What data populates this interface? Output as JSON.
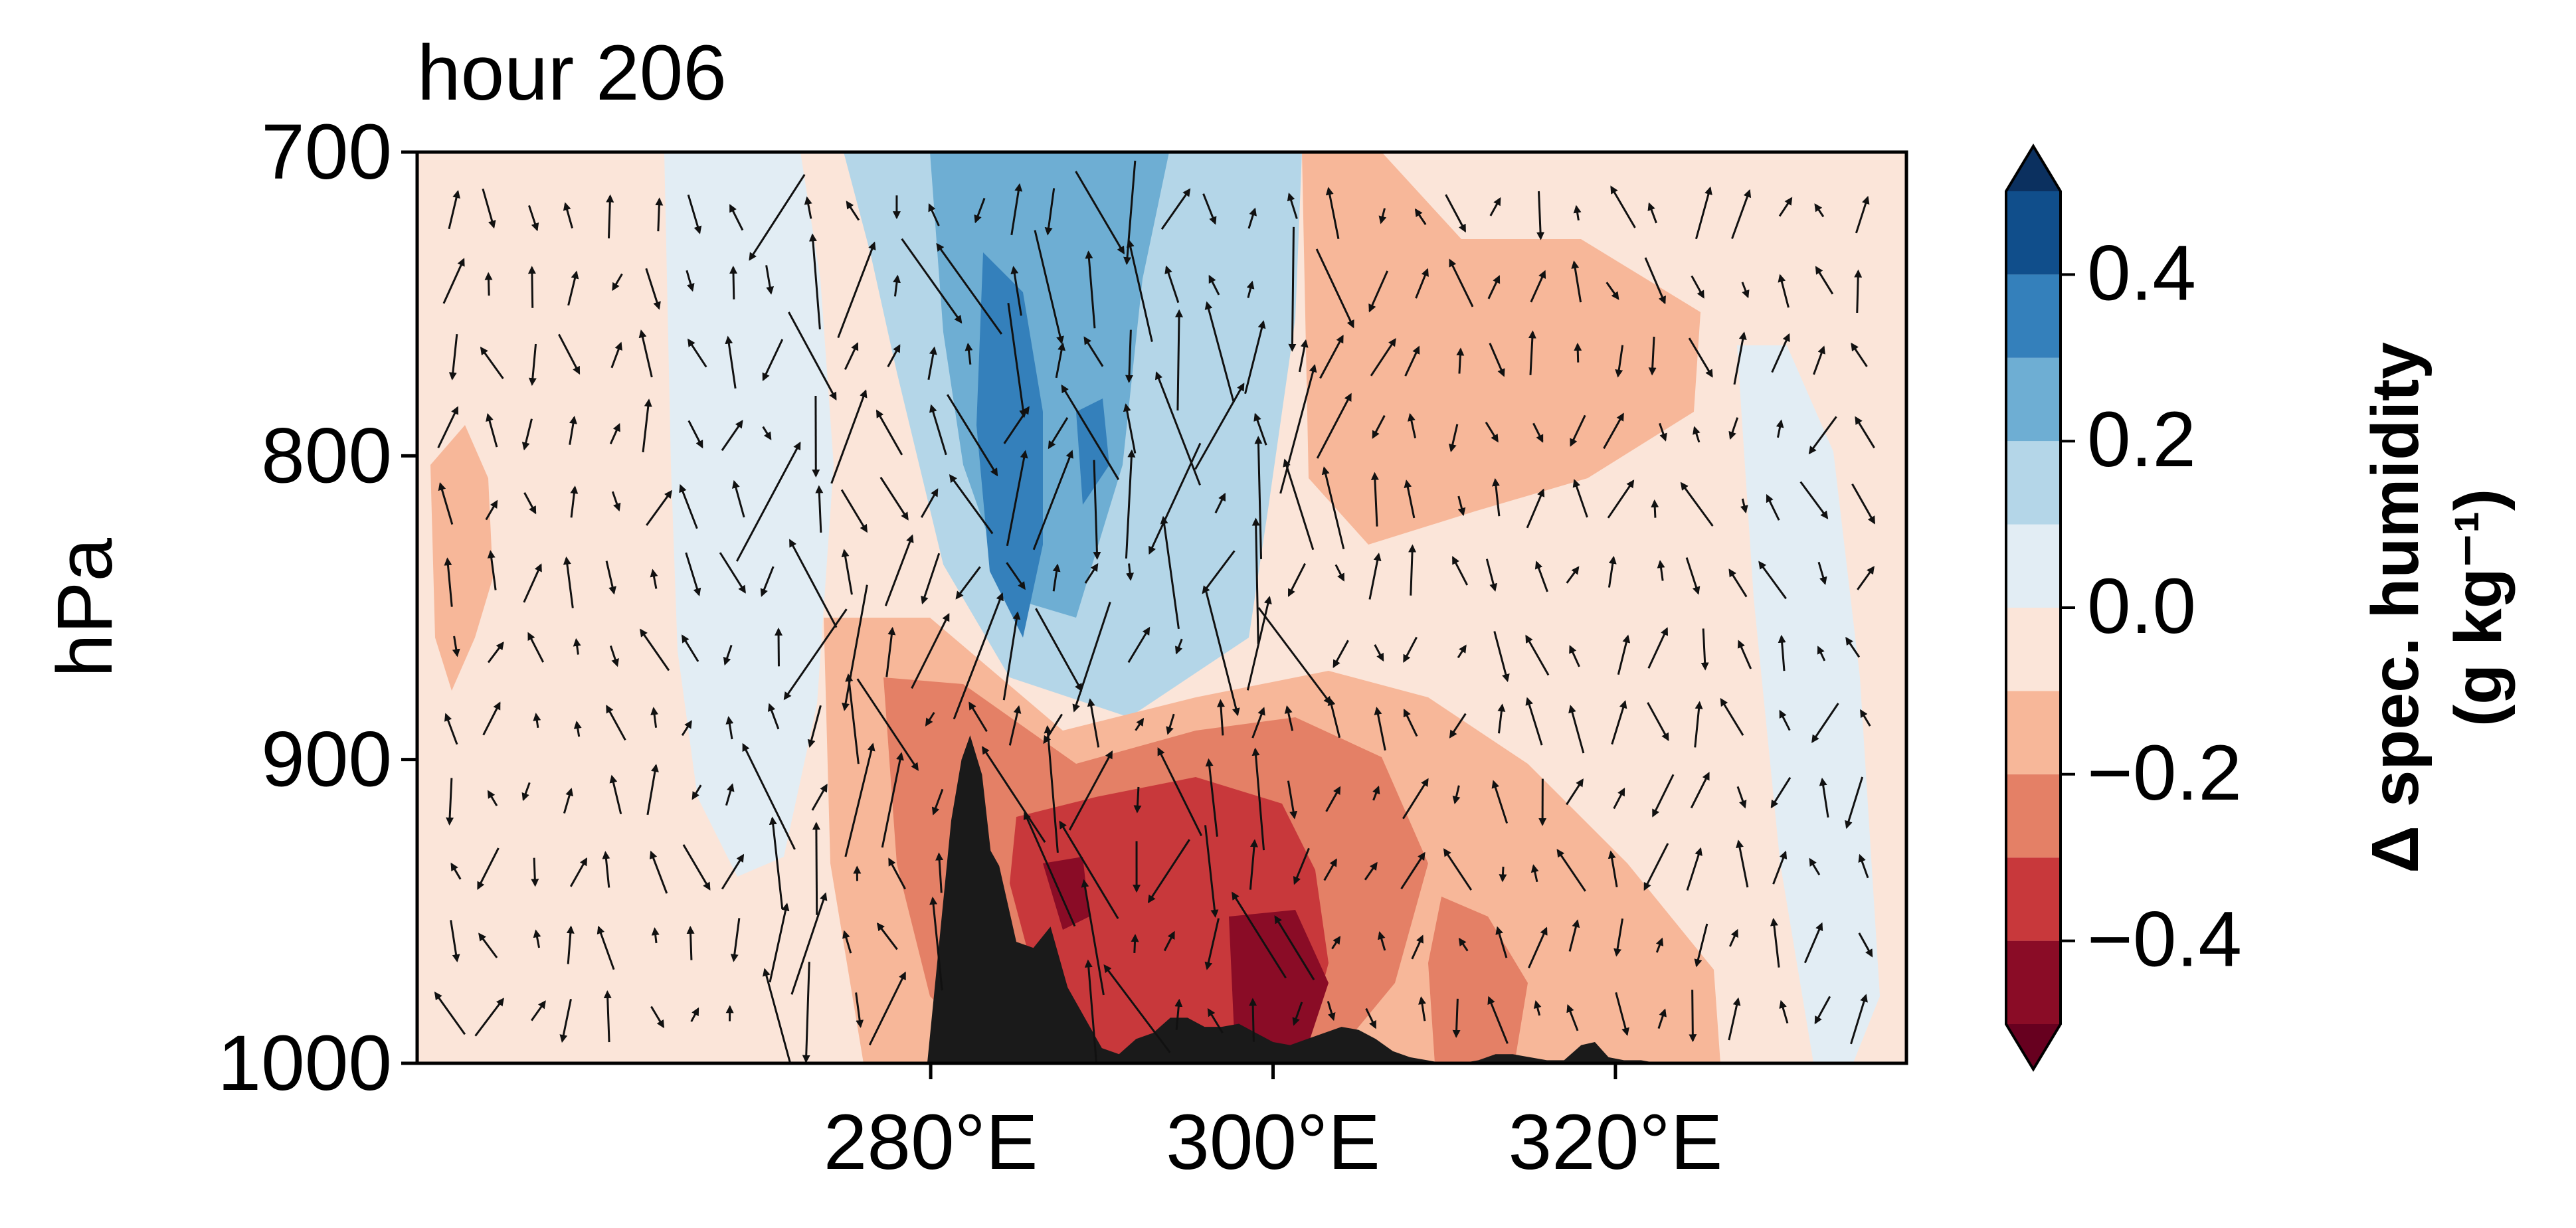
{
  "chart_data": {
    "type": "contourf_with_quiver",
    "title": "hour 206",
    "ylabel": "hPa",
    "xlabel": "",
    "x_range": [
      250,
      337
    ],
    "x_ticks": [
      280,
      300,
      320
    ],
    "x_tick_labels": [
      "280°E",
      "300°E",
      "320°E"
    ],
    "y_range": [
      700,
      1000
    ],
    "y_inverted": true,
    "y_ticks": [
      700,
      800,
      900,
      1000
    ],
    "y_tick_labels": [
      "700",
      "800",
      "900",
      "1000"
    ],
    "colorbar": {
      "label_line1": "Δ spec. humidity",
      "label_line2": "(g kg⁻¹)",
      "levels": [
        -0.5,
        -0.4,
        -0.3,
        -0.2,
        -0.1,
        0.0,
        0.1,
        0.2,
        0.3,
        0.4,
        0.5
      ],
      "tick_values": [
        -0.4,
        -0.2,
        0.0,
        0.2,
        0.4
      ],
      "tick_labels": [
        "−0.4",
        "−0.2",
        "0.0",
        "0.2",
        "0.4"
      ],
      "colors": [
        "#67001f",
        "#8a0c26",
        "#c8383b",
        "#e48066",
        "#f7b799",
        "#fbe5d9",
        "#e2edf4",
        "#b4d6e8",
        "#6eaed3",
        "#3480bb",
        "#104e8b",
        "#0b305f"
      ],
      "extend": "both"
    },
    "regions": [
      {
        "name": "strong-moist-anomaly",
        "level": 0.4,
        "x": [
          287.5,
          292.5
        ],
        "p": [
          760,
          880
        ]
      },
      {
        "name": "moist-anomaly",
        "level": 0.2,
        "x": [
          283,
          303
        ],
        "p": [
          700,
          900
        ]
      },
      {
        "name": "dry-anomaly-lower",
        "level": -0.3,
        "x": [
          286,
          310
        ],
        "p": [
          900,
          1000
        ]
      },
      {
        "name": "strong-dry-anomaly",
        "level": -0.45,
        "x": [
          300,
          307
        ],
        "p": [
          940,
          1000
        ]
      },
      {
        "name": "dry-anomaly-east",
        "level": -0.2,
        "x": [
          303,
          325
        ],
        "p": [
          700,
          900
        ]
      },
      {
        "name": "dry-anomaly-west",
        "level": -0.2,
        "x": [
          251,
          255
        ],
        "p": [
          780,
          870
        ]
      }
    ],
    "terrain": {
      "x": [
        279.8,
        280.5,
        281.2,
        281.8,
        282.3,
        283,
        283.5,
        284,
        285,
        286,
        287,
        288,
        289,
        290,
        291,
        292,
        293,
        294,
        295,
        296,
        297,
        298,
        299,
        300,
        301,
        302,
        303,
        304,
        305,
        306,
        307,
        308,
        309,
        310,
        311,
        312,
        313,
        314,
        315,
        316,
        317,
        318,
        318.8,
        319.6,
        320.5,
        321.5,
        322.5
      ],
      "p": [
        1000,
        960,
        920,
        900,
        892,
        905,
        930,
        935,
        960,
        962,
        955,
        975,
        985,
        995,
        997,
        992,
        990,
        985,
        985,
        988,
        988,
        987,
        990,
        993,
        994,
        992,
        990,
        988,
        989,
        992,
        996,
        998,
        999,
        1000,
        1000,
        999,
        997,
        997,
        998,
        999,
        999,
        994,
        993,
        998,
        999,
        999,
        1000
      ]
    },
    "quiver": "wind vectors on pressure-longitude section"
  }
}
